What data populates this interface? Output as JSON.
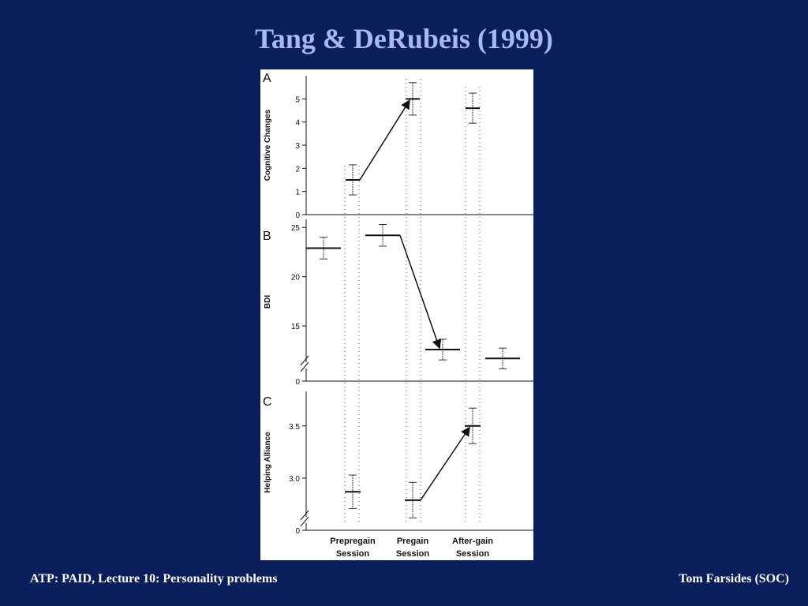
{
  "slide": {
    "title": "Tang & DeRubeis (1999)",
    "footer_left": "ATP: PAID, Lecture 10: Personality problems",
    "footer_right": "Tom Farsides (SOC)"
  },
  "chart_data": [
    {
      "type": "errorbar",
      "title": "A",
      "ylabel": "Cognitive Changes",
      "values": [
        null,
        1.5,
        null,
        5.0,
        null,
        4.6,
        null
      ],
      "errors": [
        null,
        0.65,
        null,
        0.7,
        null,
        0.65,
        null
      ],
      "ylim": [
        0,
        6
      ],
      "yticks": [
        0,
        1,
        2,
        3,
        4,
        5
      ]
    },
    {
      "type": "errorbar",
      "title": "B",
      "ylabel": "BDI",
      "values": [
        22.9,
        null,
        24.2,
        null,
        12.6,
        null,
        11.7
      ],
      "errors": [
        1.1,
        null,
        1.1,
        null,
        1.05,
        null,
        1.05
      ],
      "ylim": [
        11,
        25.5
      ],
      "yticks": [
        15,
        20,
        25
      ],
      "axis_break": true,
      "break_tick": 0
    },
    {
      "type": "errorbar",
      "title": "C",
      "ylabel": "Helping Alliance",
      "categories": [
        null,
        "Prepregain Session",
        null,
        "Pregain Session",
        null,
        "After-gain Session",
        null
      ],
      "values": [
        null,
        2.87,
        null,
        2.79,
        null,
        3.5,
        null
      ],
      "errors": [
        null,
        0.16,
        null,
        0.17,
        null,
        0.17,
        null
      ],
      "ylim": [
        2.6,
        3.8
      ],
      "yticks": [
        {
          "value": 3.0,
          "label": "3.0"
        },
        3.5
      ],
      "axis_break": true,
      "break_tick": 0
    }
  ]
}
